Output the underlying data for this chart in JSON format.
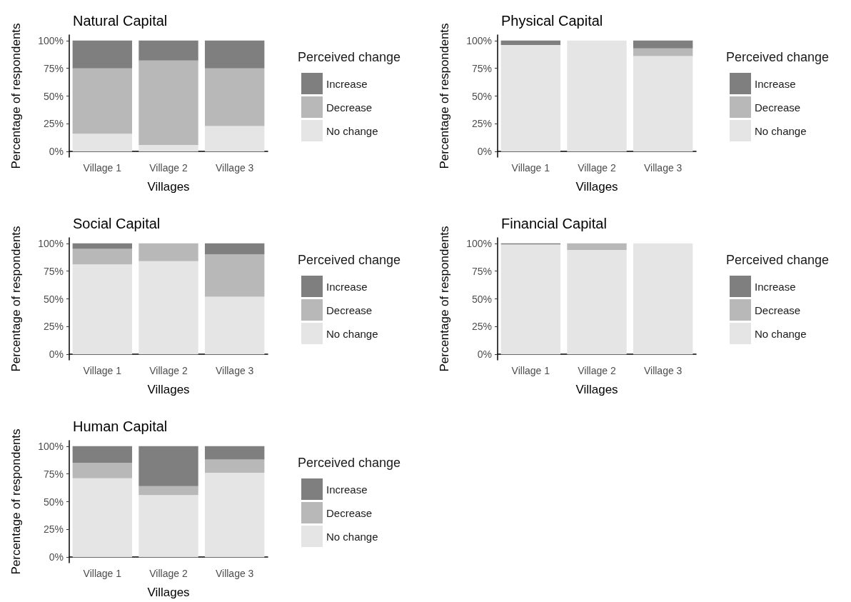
{
  "chart_data": [
    {
      "type": "bar",
      "title": "Natural Capital",
      "xlabel": "Villages",
      "ylabel": "Percentage of respondents",
      "legend_title": "Perceived change",
      "categories": [
        "Village 1",
        "Village 2",
        "Village 3"
      ],
      "stacked": true,
      "ylim": [
        -5,
        105
      ],
      "yticks": [
        {
          "value": 0,
          "label": "0%"
        },
        {
          "value": 25,
          "label": "25%"
        },
        {
          "value": 50,
          "label": "50%"
        },
        {
          "value": 75,
          "label": "75%"
        },
        {
          "value": 100,
          "label": "100%"
        }
      ],
      "legend": "right",
      "series": [
        {
          "name": "No change",
          "color": "#e5e5e5",
          "values": [
            16,
            6,
            23
          ]
        },
        {
          "name": "Decrease",
          "color": "#b8b8b8",
          "values": [
            59,
            76,
            52
          ]
        },
        {
          "name": "Increase",
          "color": "#7f7f7f",
          "values": [
            25,
            18,
            25
          ]
        }
      ]
    },
    {
      "type": "bar",
      "title": "Physical Capital",
      "xlabel": "Villages",
      "ylabel": "Percentage of respondents",
      "legend_title": "Perceived change",
      "categories": [
        "Village 1",
        "Village 2",
        "Village 3"
      ],
      "stacked": true,
      "ylim": [
        -5,
        105
      ],
      "yticks": [
        {
          "value": 0,
          "label": "0%"
        },
        {
          "value": 25,
          "label": "25%"
        },
        {
          "value": 50,
          "label": "50%"
        },
        {
          "value": 75,
          "label": "75%"
        },
        {
          "value": 100,
          "label": "100%"
        }
      ],
      "legend": "right",
      "series": [
        {
          "name": "No change",
          "color": "#e5e5e5",
          "values": [
            96,
            100,
            86
          ]
        },
        {
          "name": "Decrease",
          "color": "#b8b8b8",
          "values": [
            0,
            0,
            7
          ]
        },
        {
          "name": "Increase",
          "color": "#7f7f7f",
          "values": [
            4,
            0,
            7
          ]
        }
      ]
    },
    {
      "type": "bar",
      "title": "Social Capital",
      "xlabel": "Villages",
      "ylabel": "Percentage of respondents",
      "legend_title": "Perceived change",
      "categories": [
        "Village 1",
        "Village 2",
        "Village 3"
      ],
      "stacked": true,
      "ylim": [
        -5,
        105
      ],
      "yticks": [
        {
          "value": 0,
          "label": "0%"
        },
        {
          "value": 25,
          "label": "25%"
        },
        {
          "value": 50,
          "label": "50%"
        },
        {
          "value": 75,
          "label": "75%"
        },
        {
          "value": 100,
          "label": "100%"
        }
      ],
      "legend": "right",
      "series": [
        {
          "name": "No change",
          "color": "#e5e5e5",
          "values": [
            81,
            84,
            52
          ]
        },
        {
          "name": "Decrease",
          "color": "#b8b8b8",
          "values": [
            14,
            16,
            38
          ]
        },
        {
          "name": "Increase",
          "color": "#7f7f7f",
          "values": [
            5,
            0,
            10
          ]
        }
      ]
    },
    {
      "type": "bar",
      "title": "Financial Capital",
      "xlabel": "Villages",
      "ylabel": "Percentage of respondents",
      "legend_title": "Perceived change",
      "categories": [
        "Village 1",
        "Village 2",
        "Village 3"
      ],
      "stacked": true,
      "ylim": [
        -5,
        105
      ],
      "yticks": [
        {
          "value": 0,
          "label": "0%"
        },
        {
          "value": 25,
          "label": "25%"
        },
        {
          "value": 50,
          "label": "50%"
        },
        {
          "value": 75,
          "label": "75%"
        },
        {
          "value": 100,
          "label": "100%"
        }
      ],
      "legend": "right",
      "series": [
        {
          "name": "No change",
          "color": "#e5e5e5",
          "values": [
            99,
            94,
            100
          ]
        },
        {
          "name": "Decrease",
          "color": "#b8b8b8",
          "values": [
            0,
            6,
            0
          ]
        },
        {
          "name": "Increase",
          "color": "#7f7f7f",
          "values": [
            1,
            0,
            0
          ]
        }
      ]
    },
    {
      "type": "bar",
      "title": "Human Capital",
      "xlabel": "Villages",
      "ylabel": "Percentage of respondents",
      "legend_title": "Perceived change",
      "categories": [
        "Village 1",
        "Village 2",
        "Village 3"
      ],
      "stacked": true,
      "ylim": [
        -5,
        105
      ],
      "yticks": [
        {
          "value": 0,
          "label": "0%"
        },
        {
          "value": 25,
          "label": "25%"
        },
        {
          "value": 50,
          "label": "50%"
        },
        {
          "value": 75,
          "label": "75%"
        },
        {
          "value": 100,
          "label": "100%"
        }
      ],
      "legend": "right",
      "series": [
        {
          "name": "No change",
          "color": "#e5e5e5",
          "values": [
            71,
            56,
            76
          ]
        },
        {
          "name": "Decrease",
          "color": "#b8b8b8",
          "values": [
            14,
            8,
            12
          ]
        },
        {
          "name": "Increase",
          "color": "#7f7f7f",
          "values": [
            15,
            36,
            12
          ]
        }
      ]
    }
  ]
}
